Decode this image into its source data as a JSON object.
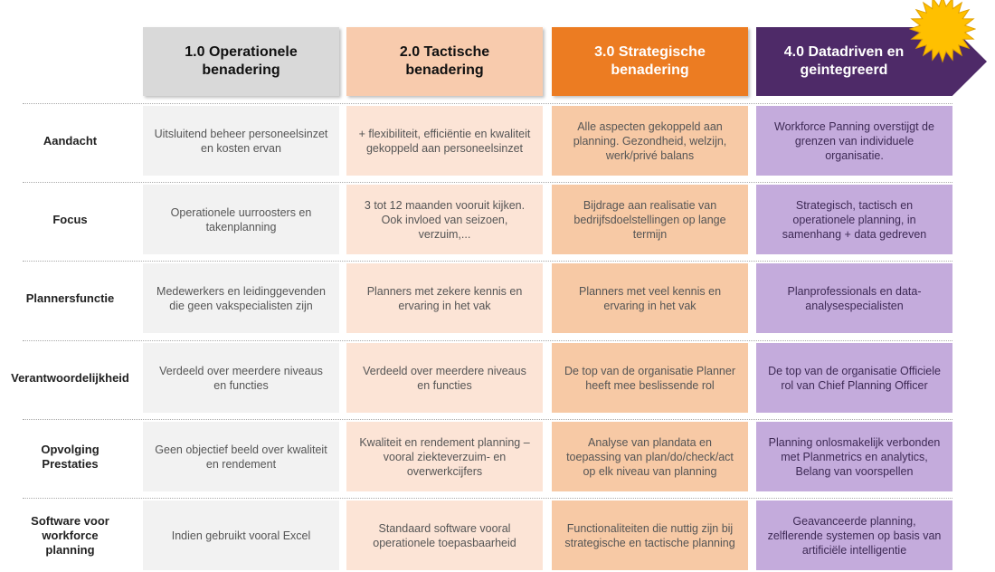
{
  "colors": {
    "col1_header": "#d9d9d9",
    "col1_cell": "#f2f2f2",
    "col2_header": "#f8cbad",
    "col2_cell": "#fce4d6",
    "col3_header": "#ec7c22",
    "col3_cell": "#f7c9a5",
    "col4_header": "#4e2a68",
    "col4_cell": "#c4abdc",
    "sun": "#ffc000"
  },
  "headers": [
    {
      "label": "1.0 Operationele benadering"
    },
    {
      "label": "2.0 Tactische benadering"
    },
    {
      "label": "3.0 Strategische benadering"
    },
    {
      "label": "4.0 Datadriven en geintegreerd"
    }
  ],
  "rows": [
    {
      "label": "Aandacht",
      "cells": [
        "Uitsluitend beheer personeelsinzet en kosten ervan",
        "+ flexibiliteit, efficiëntie en kwaliteit gekoppeld aan personeelsinzet",
        "Alle aspecten gekoppeld aan planning. Gezondheid, welzijn, werk/privé balans",
        "Workforce Panning overstijgt de grenzen van individuele organisatie."
      ]
    },
    {
      "label": "Focus",
      "cells": [
        "Operationele uurroosters en takenplanning",
        "3 tot 12 maanden vooruit kijken. Ook invloed van seizoen, verzuim,...",
        "Bijdrage aan realisatie van bedrijfsdoelstellingen op lange termijn",
        "Strategisch, tactisch en operationele planning, in samenhang + data gedreven"
      ]
    },
    {
      "label": "Plannersfunctie",
      "cells": [
        "Medewerkers en leidinggevenden die geen vakspecialisten zijn",
        "Planners met zekere kennis en ervaring in het vak",
        "Planners met veel kennis en ervaring in het vak",
        "Planprofessionals en data-analysespecialisten"
      ]
    },
    {
      "label": "Verantwoordelijkheid",
      "cells": [
        "Verdeeld over meerdere niveaus en functies",
        "Verdeeld over meerdere niveaus en functies",
        "De top van de organisatie Planner heeft mee beslissende rol",
        "De top van de organisatie Officiele rol van Chief Planning Officer"
      ]
    },
    {
      "label": "Opvolging Prestaties",
      "cells": [
        "Geen objectief beeld over kwaliteit en rendement",
        "Kwaliteit en rendement planning – vooral ziekteverzuim- en overwerkcijfers",
        "Analyse van plandata en toepassing van plan/do/check/act op elk niveau van planning",
        "Planning onlosmakelijk verbonden met Planmetrics en analytics, Belang van voorspellen"
      ]
    },
    {
      "label": "Software voor workforce planning",
      "cells": [
        "Indien gebruikt vooral Excel",
        "Standaard software vooral operationele toepasbaarheid",
        "Functionaliteiten die nuttig zijn bij strategische en tactische planning",
        "Geavanceerde planning, zelflerende systemen op basis van artificiële intelligentie"
      ]
    }
  ]
}
